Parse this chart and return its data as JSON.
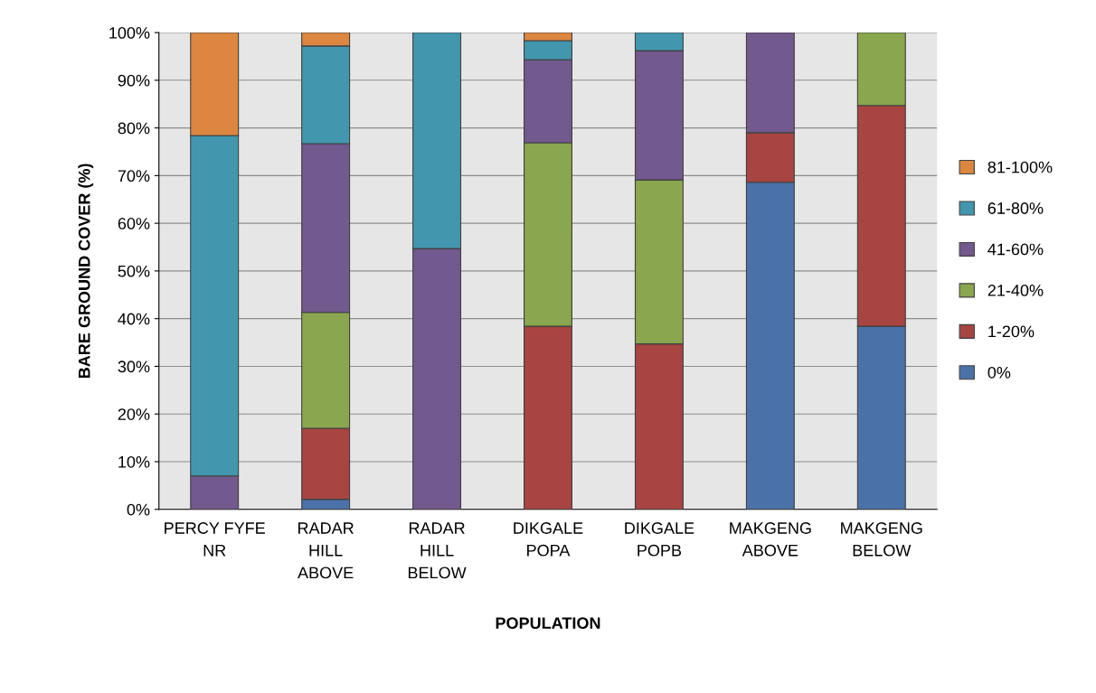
{
  "chart_data": {
    "type": "bar",
    "stacked": true,
    "xlabel": "POPULATION",
    "ylabel": "BARE GROUND COVER (%)",
    "categories": [
      "PERCY FYFE\nNR",
      "RADAR\nHILL\nABOVE",
      "RADAR\nHILL\nBELOW",
      "DIKGALE\nPOPA",
      "DIKGALE\nPOPB",
      "MAKGENG\nABOVE",
      "MAKGENG\nBELOW"
    ],
    "series": [
      {
        "name": "0%",
        "color": "#4a72a8",
        "values": [
          0,
          2.1,
          0,
          0,
          0,
          68.6,
          38.4
        ]
      },
      {
        "name": "1-20%",
        "color": "#a84442",
        "values": [
          0,
          14.9,
          0,
          38.4,
          34.7,
          10.4,
          46.3
        ]
      },
      {
        "name": "21-40%",
        "color": "#8aa64e",
        "values": [
          0,
          24.3,
          0,
          38.5,
          34.4,
          0,
          15.3
        ]
      },
      {
        "name": "41-60%",
        "color": "#72598e",
        "values": [
          7.0,
          35.4,
          54.7,
          17.4,
          27.1,
          21.0,
          0
        ]
      },
      {
        "name": "61-80%",
        "color": "#4297ae",
        "values": [
          71.4,
          20.5,
          45.3,
          4.0,
          3.8,
          0,
          0
        ]
      },
      {
        "name": "81-100%",
        "color": "#dc8640",
        "values": [
          21.6,
          2.8,
          0,
          1.7,
          0,
          0,
          0
        ]
      }
    ],
    "ylim": [
      0,
      100
    ],
    "yticks": [
      {
        "value": 0,
        "label": "0%"
      },
      {
        "value": 10,
        "label": "10%"
      },
      {
        "value": 20,
        "label": "20%"
      },
      {
        "value": 30,
        "label": "30%"
      },
      {
        "value": 40,
        "label": "40%"
      },
      {
        "value": 50,
        "label": "50%"
      },
      {
        "value": 60,
        "label": "60%"
      },
      {
        "value": 70,
        "label": "70%"
      },
      {
        "value": 80,
        "label": "80%"
      },
      {
        "value": 90,
        "label": "90%"
      },
      {
        "value": 100,
        "label": "100%"
      }
    ],
    "grid": "y",
    "legend": "right"
  }
}
